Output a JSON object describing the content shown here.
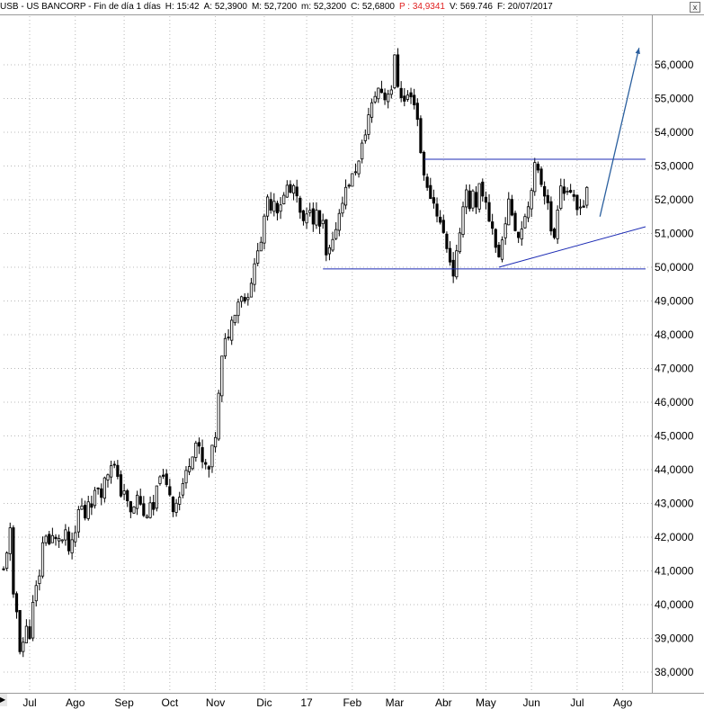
{
  "header": {
    "symbol": "USB - US BANCORP - Fin de día 1 días",
    "high": "H: 15:42",
    "ask": "A: 52,3900",
    "max": "M: 52,7200",
    "min": "m: 52,3200",
    "close": "C: 52,6800",
    "per": "P : 34,9341",
    "volume": "V: 569.746",
    "date": "F: 20/07/2017",
    "close_button": "x"
  },
  "colors": {
    "candles": "#000000",
    "grid": "#b8b8b8",
    "trendline": "#1c2bb4",
    "arrow": "#2a5f9e",
    "per_text": "#e02020"
  },
  "chart_data": {
    "type": "candlestick",
    "title": "USB - US BANCORP",
    "ylim": [
      37.5,
      56.7
    ],
    "y_ticks": [
      "56,0000",
      "55,0000",
      "54,0000",
      "53,0000",
      "52,0000",
      "51,0000",
      "50,0000",
      "49,0000",
      "48,0000",
      "47,0000",
      "46,0000",
      "45,0000",
      "44,0000",
      "43,0000",
      "42,0000",
      "41,0000",
      "40,0000",
      "39,0000",
      "38,0000"
    ],
    "y_tick_values": [
      56,
      55,
      54,
      53,
      52,
      51,
      50,
      49,
      48,
      47,
      46,
      45,
      44,
      43,
      42,
      41,
      40,
      39,
      38
    ],
    "x_labels": [
      "Jul",
      "Ago",
      "Sep",
      "Oct",
      "Nov",
      "Dic",
      "17",
      "Feb",
      "Mar",
      "Abr",
      "May",
      "Jun",
      "Jul",
      "Ago"
    ],
    "x_label_index": [
      8,
      22,
      37,
      51,
      65,
      80,
      93,
      107,
      120,
      135,
      148,
      162,
      176,
      190
    ],
    "n_days": 198,
    "close_path": [
      [
        0,
        41.0
      ],
      [
        2,
        42.2
      ],
      [
        3,
        40.2
      ],
      [
        4,
        39.8
      ],
      [
        5,
        38.7
      ],
      [
        6,
        38.9
      ],
      [
        7,
        39.3
      ],
      [
        8,
        39.1
      ],
      [
        9,
        40.0
      ],
      [
        10,
        40.5
      ],
      [
        11,
        40.9
      ],
      [
        12,
        41.8
      ],
      [
        13,
        42.1
      ],
      [
        14,
        41.8
      ],
      [
        15,
        42.0
      ],
      [
        16,
        41.9
      ],
      [
        17,
        42.0
      ],
      [
        18,
        41.9
      ],
      [
        19,
        42.1
      ],
      [
        20,
        41.6
      ],
      [
        21,
        41.8
      ],
      [
        22,
        42.1
      ],
      [
        23,
        42.8
      ],
      [
        24,
        42.9
      ],
      [
        25,
        42.6
      ],
      [
        26,
        43.1
      ],
      [
        27,
        43.0
      ],
      [
        28,
        43.3
      ],
      [
        29,
        43.5
      ],
      [
        30,
        43.3
      ],
      [
        31,
        43.7
      ],
      [
        32,
        43.9
      ],
      [
        33,
        44.2
      ],
      [
        34,
        44.1
      ],
      [
        35,
        43.7
      ],
      [
        36,
        43.3
      ],
      [
        37,
        43.4
      ],
      [
        38,
        43.0
      ],
      [
        39,
        42.7
      ],
      [
        40,
        42.9
      ],
      [
        41,
        43.2
      ],
      [
        42,
        43.0
      ],
      [
        43,
        42.6
      ],
      [
        44,
        42.7
      ],
      [
        45,
        42.9
      ],
      [
        46,
        42.8
      ],
      [
        47,
        43.4
      ],
      [
        48,
        43.9
      ],
      [
        49,
        43.7
      ],
      [
        50,
        43.5
      ],
      [
        51,
        43.3
      ],
      [
        52,
        42.8
      ],
      [
        53,
        43.1
      ],
      [
        54,
        43.2
      ],
      [
        55,
        43.6
      ],
      [
        56,
        43.9
      ],
      [
        57,
        44.2
      ],
      [
        58,
        44.5
      ],
      [
        59,
        44.8
      ],
      [
        60,
        44.6
      ],
      [
        61,
        44.2
      ],
      [
        62,
        44.1
      ],
      [
        63,
        44.0
      ],
      [
        64,
        44.6
      ],
      [
        65,
        45.0
      ],
      [
        66,
        46.2
      ],
      [
        67,
        47.3
      ],
      [
        68,
        47.8
      ],
      [
        69,
        48.0
      ],
      [
        70,
        48.4
      ],
      [
        71,
        48.7
      ],
      [
        72,
        49.0
      ],
      [
        73,
        49.2
      ],
      [
        74,
        49.0
      ],
      [
        75,
        49.2
      ],
      [
        76,
        49.6
      ],
      [
        77,
        50.0
      ],
      [
        78,
        50.6
      ],
      [
        79,
        50.8
      ],
      [
        80,
        51.4
      ],
      [
        81,
        52.0
      ],
      [
        82,
        51.8
      ],
      [
        83,
        52.0
      ],
      [
        84,
        51.7
      ],
      [
        85,
        51.9
      ],
      [
        86,
        52.1
      ],
      [
        87,
        52.4
      ],
      [
        88,
        52.2
      ],
      [
        89,
        52.4
      ],
      [
        90,
        52.0
      ],
      [
        91,
        51.6
      ],
      [
        92,
        51.3
      ],
      [
        93,
        51.5
      ],
      [
        94,
        51.8
      ],
      [
        95,
        51.4
      ],
      [
        96,
        51.6
      ],
      [
        97,
        51.2
      ],
      [
        98,
        51.3
      ],
      [
        99,
        50.3
      ],
      [
        100,
        50.5
      ],
      [
        101,
        50.7
      ],
      [
        102,
        51.2
      ],
      [
        103,
        51.6
      ],
      [
        104,
        52.0
      ],
      [
        105,
        52.3
      ],
      [
        106,
        52.5
      ],
      [
        107,
        52.7
      ],
      [
        108,
        52.9
      ],
      [
        109,
        53.1
      ],
      [
        110,
        53.6
      ],
      [
        111,
        54.0
      ],
      [
        112,
        54.5
      ],
      [
        113,
        54.8
      ],
      [
        114,
        55.1
      ],
      [
        115,
        55.3
      ],
      [
        116,
        55.2
      ],
      [
        117,
        55.0
      ],
      [
        118,
        55.2
      ],
      [
        119,
        55.3
      ],
      [
        120,
        56.2
      ],
      [
        121,
        55.4
      ],
      [
        122,
        55.1
      ],
      [
        123,
        54.9
      ],
      [
        124,
        55.1
      ],
      [
        125,
        55.0
      ],
      [
        126,
        54.9
      ],
      [
        127,
        54.4
      ],
      [
        128,
        53.4
      ],
      [
        129,
        52.8
      ],
      [
        130,
        52.3
      ],
      [
        131,
        52.1
      ],
      [
        132,
        51.9
      ],
      [
        133,
        51.6
      ],
      [
        134,
        51.3
      ],
      [
        135,
        51.0
      ],
      [
        136,
        50.6
      ],
      [
        137,
        50.2
      ],
      [
        138,
        49.8
      ],
      [
        139,
        50.4
      ],
      [
        140,
        50.9
      ],
      [
        141,
        51.9
      ],
      [
        142,
        52.3
      ],
      [
        143,
        51.8
      ],
      [
        144,
        52.2
      ],
      [
        145,
        51.7
      ],
      [
        146,
        52.4
      ],
      [
        147,
        52.0
      ],
      [
        148,
        51.9
      ],
      [
        149,
        51.4
      ],
      [
        150,
        51.2
      ],
      [
        151,
        50.6
      ],
      [
        152,
        50.3
      ],
      [
        153,
        50.8
      ],
      [
        154,
        51.4
      ],
      [
        155,
        51.9
      ],
      [
        156,
        51.6
      ],
      [
        157,
        51.2
      ],
      [
        158,
        50.9
      ],
      [
        159,
        51.2
      ],
      [
        160,
        51.6
      ],
      [
        161,
        51.8
      ],
      [
        162,
        52.4
      ],
      [
        163,
        53.0
      ],
      [
        164,
        52.8
      ],
      [
        165,
        52.5
      ],
      [
        166,
        52.2
      ],
      [
        167,
        52.0
      ],
      [
        168,
        51.0
      ],
      [
        169,
        50.9
      ],
      [
        170,
        51.8
      ],
      [
        171,
        52.5
      ],
      [
        172,
        52.2
      ],
      [
        173,
        52.3
      ],
      [
        174,
        52.1
      ],
      [
        175,
        52.0
      ],
      [
        176,
        51.7
      ],
      [
        177,
        51.9
      ],
      [
        178,
        51.8
      ],
      [
        179,
        52.4
      ]
    ],
    "drawings": {
      "resistance_y": 53.2,
      "resistance_from": 129,
      "resistance_to": 197,
      "support_y": 49.95,
      "support_from": 98,
      "support_to": 197,
      "rising_from": [
        152,
        50.0
      ],
      "rising_to": [
        197,
        51.2
      ],
      "arrow_from": [
        183,
        51.5
      ],
      "arrow_to": [
        195,
        56.5
      ]
    }
  }
}
